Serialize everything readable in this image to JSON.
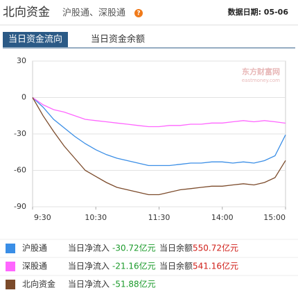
{
  "header": {
    "title": "北向资金",
    "subtitle": "沪股通、深股通",
    "date": "数据日期: 05-06"
  },
  "tabs": [
    "当日资金流向",
    "当日资金余额"
  ],
  "chart_data": {
    "type": "line",
    "watermark": "东方财富网",
    "watermark_sub": "eastmoney.com",
    "categories": [
      "9:30",
      null,
      null,
      null,
      null,
      null,
      "10:30",
      null,
      null,
      null,
      null,
      null,
      "11:30",
      null,
      null,
      null,
      null,
      null,
      "14:00",
      null,
      null,
      null,
      null,
      null,
      "15:00"
    ],
    "ylim": [
      -90,
      30
    ],
    "yticks": [
      30,
      0,
      -30,
      -60,
      -90
    ],
    "grid": true,
    "net_inflow_caption": "当日净流入",
    "balance_caption": "当日余额",
    "series": [
      {
        "name": "沪股通",
        "color": "#3a8ee6",
        "values": [
          0,
          -8,
          -18,
          -25,
          -32,
          -38,
          -43,
          -47,
          -50,
          -52,
          -54,
          -56,
          -56,
          -56,
          -55,
          -54,
          -54,
          -53,
          -53,
          -54,
          -53,
          -54,
          -52,
          -48,
          -30.72
        ],
        "net_inflow_label": "-30.72亿元",
        "balance_label": "550.72亿元"
      },
      {
        "name": "深股通",
        "color": "#ff66ff",
        "values": [
          0,
          -6,
          -10,
          -12,
          -15,
          -18,
          -19,
          -20,
          -21,
          -22,
          -23,
          -24,
          -24,
          -23,
          -23,
          -22,
          -22,
          -21,
          -21,
          -20,
          -19,
          -20,
          -19,
          -20,
          -21.16
        ],
        "net_inflow_label": "-21.16亿元",
        "balance_label": "541.16亿元"
      },
      {
        "name": "北向资金",
        "color": "#7b4a2a",
        "values": [
          0,
          -15,
          -28,
          -40,
          -50,
          -60,
          -65,
          -70,
          -74,
          -76,
          -78,
          -80,
          -80,
          -78,
          -76,
          -75,
          -74,
          -73,
          -73,
          -72,
          -71,
          -72,
          -70,
          -66,
          -51.88
        ],
        "net_inflow_label": "-51.88亿元"
      }
    ]
  }
}
